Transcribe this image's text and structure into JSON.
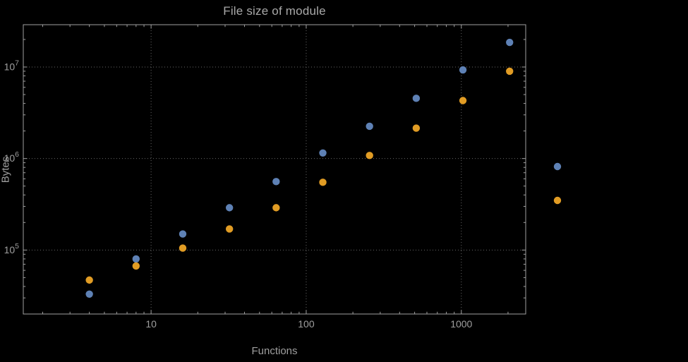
{
  "theme": {
    "background": "#000000",
    "frame": "#9f9f9f",
    "grid": "#676767",
    "text": "#9f9f9f",
    "title": "#a9a9a9"
  },
  "chart_data": {
    "type": "scatter",
    "title": "File size of module",
    "xlabel": "Functions",
    "ylabel": "Bytes",
    "x_scale": "log",
    "y_scale": "log",
    "xlim": [
      1.5,
      2600
    ],
    "ylim": [
      20000,
      29000000
    ],
    "x_ticks": [
      10,
      100,
      1000
    ],
    "y_ticks": [
      100000,
      1000000,
      10000000
    ],
    "y_tick_labels": [
      "10^5",
      "10^6",
      "10^7"
    ],
    "grid": true,
    "grid_style": "dotted",
    "x": [
      4,
      8,
      16,
      32,
      64,
      128,
      256,
      512,
      1024,
      2048
    ],
    "series": [
      {
        "name": "series-1-blue",
        "color": "#5e81b5",
        "values": [
          33000,
          80000,
          150000,
          290000,
          560000,
          1150000,
          2250000,
          4550000,
          9300000,
          18600000
        ]
      },
      {
        "name": "series-2-orange",
        "color": "#e19c24",
        "values": [
          47000,
          67000,
          105000,
          170000,
          290000,
          550000,
          1080000,
          2150000,
          4300000,
          9000000
        ]
      }
    ],
    "legend": {
      "position": "right",
      "markers": [
        {
          "name": "legend-marker-series-1",
          "color": "#5e81b5"
        },
        {
          "name": "legend-marker-series-2",
          "color": "#e19c24"
        }
      ]
    }
  }
}
